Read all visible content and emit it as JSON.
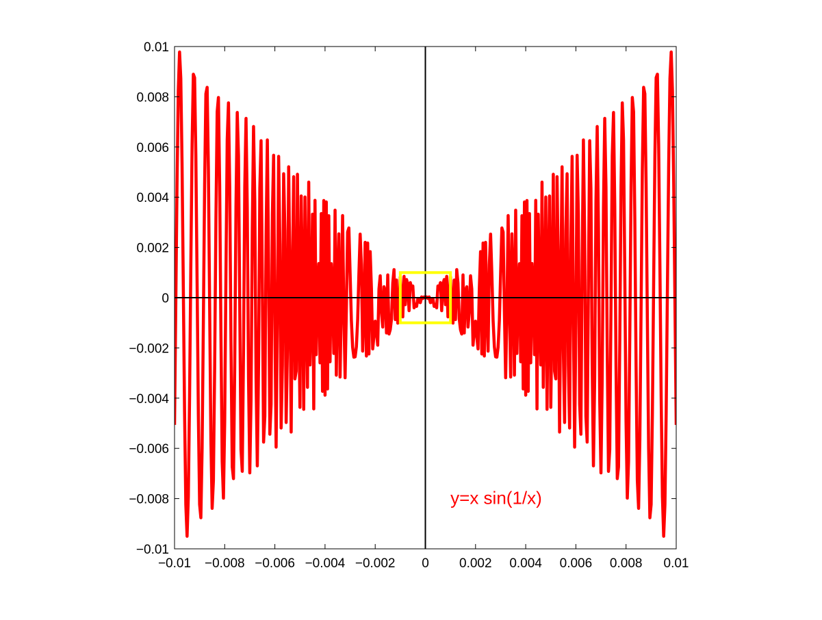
{
  "chart_data": {
    "type": "line",
    "title": "",
    "xlabel": "",
    "ylabel": "",
    "xlim": [
      -0.01,
      0.01
    ],
    "ylim": [
      -0.01,
      0.01
    ],
    "x_ticks": [
      {
        "value": -0.01,
        "label": "−0.01"
      },
      {
        "value": -0.008,
        "label": "−0.008"
      },
      {
        "value": -0.006,
        "label": "−0.006"
      },
      {
        "value": -0.004,
        "label": "−0.004"
      },
      {
        "value": -0.002,
        "label": "−0.002"
      },
      {
        "value": 0,
        "label": "0"
      },
      {
        "value": 0.002,
        "label": "0.002"
      },
      {
        "value": 0.004,
        "label": "0.004"
      },
      {
        "value": 0.006,
        "label": "0.006"
      },
      {
        "value": 0.008,
        "label": "0.008"
      },
      {
        "value": 0.01,
        "label": "0.01"
      }
    ],
    "y_ticks": [
      {
        "value": 0.01,
        "label": "0.01"
      },
      {
        "value": 0.008,
        "label": "0.008"
      },
      {
        "value": 0.006,
        "label": "0.006"
      },
      {
        "value": 0.004,
        "label": "0.004"
      },
      {
        "value": 0.002,
        "label": "0.002"
      },
      {
        "value": 0,
        "label": "0"
      },
      {
        "value": -0.002,
        "label": "−0.002"
      },
      {
        "value": -0.004,
        "label": "−0.004"
      },
      {
        "value": -0.006,
        "label": "−0.006"
      },
      {
        "value": -0.008,
        "label": "−0.008"
      },
      {
        "value": -0.01,
        "label": "−0.01"
      }
    ],
    "grid": false,
    "series": [
      {
        "function": "x*sin(1/x)",
        "x_range": [
          -0.01,
          0.01
        ],
        "color": "#ff0000"
      }
    ],
    "zero_axes_color": "#000000",
    "highlight_box": {
      "x_range": [
        -0.001,
        0.001
      ],
      "y_range": [
        -0.001,
        0.001
      ],
      "color": "#ffff00"
    },
    "annotation": {
      "text": "y=x sin(1/x)",
      "x": 0.001,
      "y": -0.008,
      "color": "#ff0000"
    }
  }
}
